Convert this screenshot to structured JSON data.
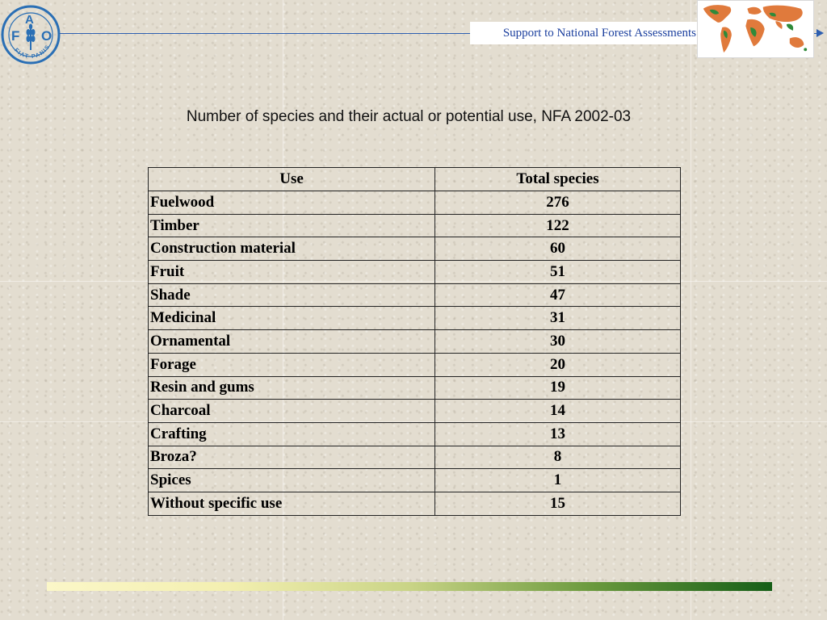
{
  "header": {
    "banner_text": "Support to National Forest Assessments",
    "logo_letters": {
      "f": "F",
      "a": "A",
      "o": "O",
      "motto": "FIAT PANIS"
    }
  },
  "page": {
    "title": "Number of species and their actual or potential use, NFA 2002-03"
  },
  "table": {
    "headers": [
      "Use",
      "Total species"
    ],
    "rows": [
      {
        "use": "Fuelwood",
        "total": "276"
      },
      {
        "use": "Timber",
        "total": "122"
      },
      {
        "use": "Construction material",
        "total": "60"
      },
      {
        "use": "Fruit",
        "total": "51"
      },
      {
        "use": "Shade",
        "total": "47"
      },
      {
        "use": "Medicinal",
        "total": "31"
      },
      {
        "use": "Ornamental",
        "total": "30"
      },
      {
        "use": "Forage",
        "total": "20"
      },
      {
        "use": "Resin and gums",
        "total": "19"
      },
      {
        "use": "Charcoal",
        "total": "14"
      },
      {
        "use": "Crafting",
        "total": "13"
      },
      {
        "use": "Broza?",
        "total": "8"
      },
      {
        "use": "Spices",
        "total": "1"
      },
      {
        "use": "Without specific use",
        "total": "15"
      }
    ]
  },
  "colors": {
    "accent_blue": "#2e5fb0",
    "banner_text": "#1b3f9e",
    "logo_blue": "#2a6fb5",
    "footer_start": "#fbf7c8",
    "footer_end": "#155e17"
  },
  "icons": {
    "logo": "fao-wheat-logo-icon",
    "map": "world-map-icon",
    "arrow": "arrow-right-icon"
  }
}
